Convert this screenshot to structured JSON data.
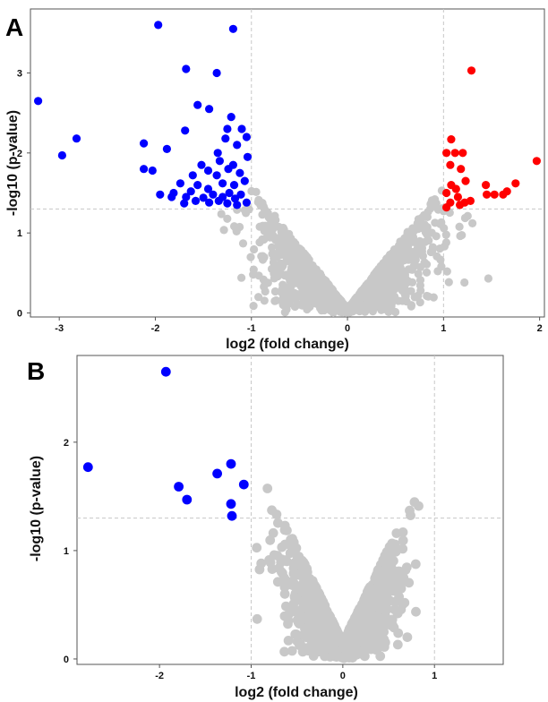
{
  "chart_data": [
    {
      "panel": "A",
      "type": "scatter",
      "xlabel": "log2 (fold change)",
      "ylabel": "-log10 (p-value)",
      "xlim": [
        -3.3,
        2.05
      ],
      "ylim": [
        -0.05,
        3.8
      ],
      "x_ticks": [
        -3,
        -2,
        -1,
        0,
        1,
        2
      ],
      "y_ticks": [
        0,
        1,
        2,
        3
      ],
      "threshold_lines": {
        "x": [
          -1,
          1
        ],
        "y": 1.3
      },
      "colors": {
        "down": "#0000ff",
        "up": "#ff0000",
        "ns": "#c8c8c8",
        "threshold": "#c8c8c8"
      },
      "grid": false,
      "significant_down": [
        [
          -3.22,
          2.65
        ],
        [
          -2.97,
          1.97
        ],
        [
          -2.82,
          2.18
        ],
        [
          -1.97,
          3.6
        ],
        [
          -1.19,
          3.55
        ],
        [
          -1.68,
          3.05
        ],
        [
          -1.36,
          3.0
        ],
        [
          -2.12,
          2.12
        ],
        [
          -2.12,
          1.8
        ],
        [
          -2.03,
          1.78
        ],
        [
          -1.56,
          2.6
        ],
        [
          -1.44,
          2.55
        ],
        [
          -1.21,
          2.45
        ],
        [
          -1.69,
          2.28
        ],
        [
          -1.25,
          2.3
        ],
        [
          -1.1,
          2.3
        ],
        [
          -1.05,
          2.2
        ],
        [
          -1.88,
          2.05
        ],
        [
          -1.35,
          2.0
        ],
        [
          -1.15,
          2.1
        ],
        [
          -1.27,
          2.18
        ],
        [
          -1.52,
          1.85
        ],
        [
          -1.33,
          1.9
        ],
        [
          -1.19,
          1.85
        ],
        [
          -1.04,
          1.95
        ],
        [
          -1.24,
          1.8
        ],
        [
          -1.61,
          1.72
        ],
        [
          -1.45,
          1.78
        ],
        [
          -1.36,
          1.72
        ],
        [
          -1.12,
          1.75
        ],
        [
          -1.74,
          1.62
        ],
        [
          -1.56,
          1.6
        ],
        [
          -1.3,
          1.62
        ],
        [
          -1.18,
          1.6
        ],
        [
          -1.07,
          1.65
        ],
        [
          -1.81,
          1.5
        ],
        [
          -1.63,
          1.52
        ],
        [
          -1.45,
          1.55
        ],
        [
          -1.23,
          1.5
        ],
        [
          -1.11,
          1.48
        ],
        [
          -1.83,
          1.45
        ],
        [
          -1.68,
          1.45
        ],
        [
          -1.5,
          1.44
        ],
        [
          -1.4,
          1.48
        ],
        [
          -1.3,
          1.45
        ],
        [
          -1.17,
          1.43
        ],
        [
          -1.05,
          1.38
        ],
        [
          -1.7,
          1.37
        ],
        [
          -1.25,
          1.37
        ],
        [
          -1.34,
          1.4
        ],
        [
          -1.58,
          1.4
        ],
        [
          -1.15,
          1.35
        ],
        [
          -1.44,
          1.38
        ],
        [
          -1.95,
          1.48
        ]
      ],
      "significant_up": [
        [
          1.29,
          3.03
        ],
        [
          1.08,
          2.17
        ],
        [
          1.97,
          1.9
        ],
        [
          1.12,
          2.0
        ],
        [
          1.2,
          2.0
        ],
        [
          1.03,
          2.0
        ],
        [
          1.07,
          1.85
        ],
        [
          1.18,
          1.8
        ],
        [
          1.23,
          1.65
        ],
        [
          1.08,
          1.6
        ],
        [
          1.13,
          1.55
        ],
        [
          1.44,
          1.6
        ],
        [
          1.75,
          1.62
        ],
        [
          1.66,
          1.52
        ],
        [
          1.53,
          1.48
        ],
        [
          1.62,
          1.48
        ],
        [
          1.45,
          1.48
        ],
        [
          1.03,
          1.5
        ],
        [
          1.15,
          1.45
        ],
        [
          1.07,
          1.38
        ],
        [
          1.22,
          1.38
        ],
        [
          1.28,
          1.4
        ],
        [
          1.03,
          1.32
        ],
        [
          1.17,
          1.35
        ]
      ]
    },
    {
      "panel": "B",
      "type": "scatter",
      "xlabel": "log2 (fold change)",
      "ylabel": "-log10 (p-value)",
      "xlim": [
        -2.9,
        1.75
      ],
      "ylim": [
        -0.05,
        2.8
      ],
      "x_ticks": [
        -2,
        -1,
        0,
        1
      ],
      "y_ticks": [
        0,
        1,
        2
      ],
      "threshold_lines": {
        "x": [
          -1,
          1
        ],
        "y": 1.3
      },
      "colors": {
        "down": "#0000ff",
        "up": "#ff0000",
        "ns": "#c8c8c8",
        "threshold": "#c8c8c8"
      },
      "grid": false,
      "significant_down": [
        [
          -1.93,
          2.65
        ],
        [
          -2.78,
          1.77
        ],
        [
          -1.79,
          1.59
        ],
        [
          -1.7,
          1.47
        ],
        [
          -1.37,
          1.71
        ],
        [
          -1.22,
          1.8
        ],
        [
          -1.08,
          1.61
        ],
        [
          -1.22,
          1.43
        ],
        [
          -1.21,
          1.32
        ]
      ],
      "significant_up": []
    }
  ]
}
